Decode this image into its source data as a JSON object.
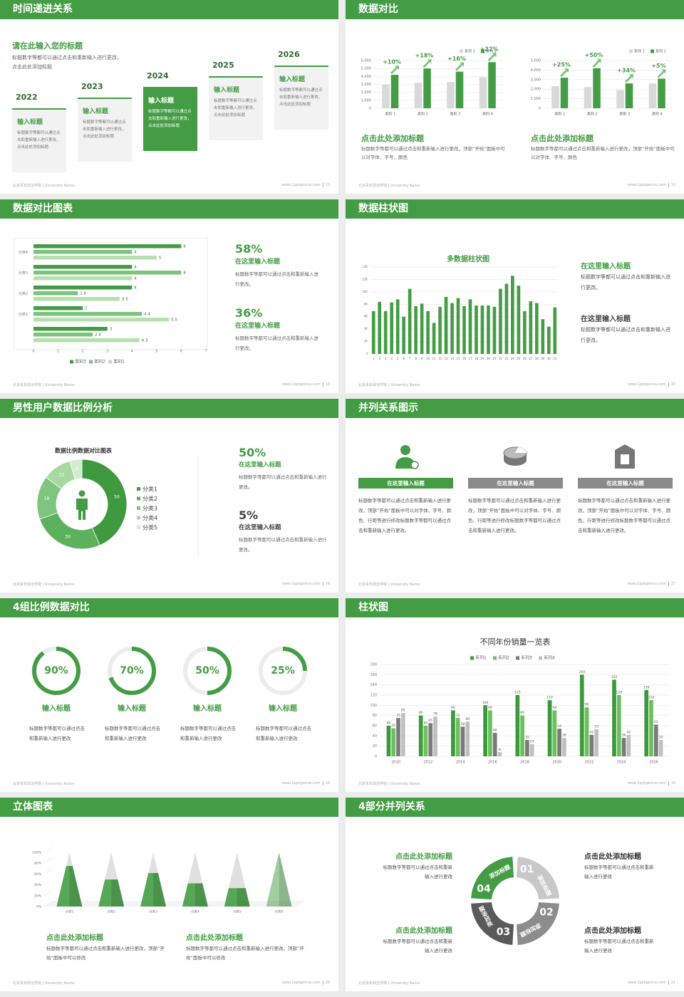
{
  "footer_left": "北京青年政治学院 | University Name",
  "footer_url": "www.1pptgenius.com",
  "slides": [
    {
      "title": "时间递进关系",
      "page": 12,
      "heading": "请在此输入您的标题",
      "text": "标题数字等都可以通过点击和重新输入进行更改，点击此处添加标题",
      "timeline": [
        {
          "year": "2022",
          "title": "输入标题",
          "text": "标题数字等都可以通过点击和重新输入进行更改，点击此处添加标题",
          "color": "#f2f2f2"
        },
        {
          "year": "2023",
          "title": "输入标题",
          "text": "标题数字等都可以通过点击和重新输入进行更改，点击此处添加标题",
          "color": "#f2f2f2"
        },
        {
          "year": "2024",
          "title": "输入标题",
          "text": "标题数字等都可以通过点击和重新输入进行更改，点击此处添加标题",
          "color": "#449d44"
        },
        {
          "year": "2025",
          "title": "输入标题",
          "text": "标题数字等都可以通过点击和重新输入进行更改，点击此处添加标题",
          "color": "#f2f2f2"
        },
        {
          "year": "2026",
          "title": "输入标题",
          "text": "标题数字等都可以通过点击和重新输入进行更改，点击此处添加标题",
          "color": "#f2f2f2"
        }
      ]
    },
    {
      "title": "数据对比",
      "page": 13,
      "charts": [
        {
          "type": "bar",
          "categories": [
            "类别 1",
            "类别 2",
            "类别 3",
            "类别 4"
          ],
          "series": [
            {
              "name": "系列 1",
              "color": "#d9d9d9",
              "values": [
                3000,
                3200,
                3300,
                3900
              ]
            },
            {
              "name": "系列 2",
              "color": "#449d44",
              "values": [
                4200,
                5000,
                4600,
                5800
              ]
            }
          ],
          "annotations": [
            "+10%",
            "+18%",
            "+16%",
            "+22%"
          ],
          "ylim": [
            0,
            6000
          ],
          "yticks": [
            0,
            {
              "value": 1000,
              "label": "1,000"
            },
            {
              "value": 2000,
              "label": "2,000"
            },
            {
              "value": 3000,
              "label": "3,000"
            },
            {
              "value": 4000,
              "label": "4,000"
            },
            {
              "value": 5000,
              "label": "5,000"
            },
            {
              "value": 6000,
              "label": "6,000"
            }
          ],
          "heading": "点击此处添加标题",
          "text": "标题数字等都可以通过点击和重新输入进行更改，顶部“开始”面板中可以对字体、字号、颜色"
        },
        {
          "type": "bar",
          "categories": [
            "类别 1",
            "类别 2",
            "类别 3",
            "类别 4"
          ],
          "series": [
            {
              "name": "系列 1",
              "color": "#d9d9d9",
              "values": [
                2300,
                2200,
                1900,
                2600
              ]
            },
            {
              "name": "系列 2",
              "color": "#449d44",
              "values": [
                3200,
                4200,
                2600,
                3100
              ]
            }
          ],
          "annotations": [
            "+25%",
            "+50%",
            "+34%",
            "+5%"
          ],
          "ylim": [
            0,
            5000
          ],
          "yticks": [
            0,
            {
              "value": 1000,
              "label": "1,000"
            },
            {
              "value": 2000,
              "label": "2,000"
            },
            {
              "value": 3000,
              "label": "3,000"
            },
            {
              "value": 4000,
              "label": "4,000"
            },
            {
              "value": 5000,
              "label": "5,000"
            }
          ],
          "heading": "点击此处添加标题",
          "text": "标题数字等都可以通过点击和重新输入进行更改，顶部“开始”面板中可以对字体、字号、颜色"
        }
      ]
    },
    {
      "title": "数据对比图表",
      "page": 14,
      "chart": {
        "type": "hbar",
        "categories": [
          null,
          "分类1",
          "分类2",
          "分类3",
          "分类4"
        ],
        "series": [
          {
            "name": "类别3",
            "color": "#449d44",
            "values": [
              3,
              2,
              4,
              4,
              6
            ]
          },
          {
            "name": "类别2",
            "color": "#7cc47c",
            "values": [
              2.4,
              4.4,
              1.8,
              6,
              4
            ]
          },
          {
            "name": "类别1",
            "color": "#b7e0b0",
            "values": [
              4.3,
              5.5,
              3.5,
              4,
              5
            ]
          }
        ],
        "xlim": [
          0,
          7
        ],
        "xticks": [
          0,
          1,
          2,
          3,
          4,
          5,
          6,
          7
        ]
      },
      "notes": [
        {
          "value": "58%",
          "title": "在这里输入标题",
          "text": "标题数字等都可以通过点击和重新输入进行更改。"
        },
        {
          "value": "36%",
          "title": "在这里输入标题",
          "text": "标题数字等都可以通过点击和重新输入进行更改。"
        }
      ]
    },
    {
      "title": "数据柱状图",
      "page": 15,
      "chart": {
        "type": "bar",
        "title": "多数据柱状图",
        "color": "#449d44",
        "categories": [
          "1",
          "2",
          "3",
          "4",
          "5",
          "6",
          "7",
          "8",
          "9",
          "10",
          "11",
          "12",
          "13",
          "14",
          "15",
          "16",
          "17",
          "18",
          "19",
          "20",
          "21",
          "22",
          "23",
          "24",
          "25",
          "26",
          "27",
          "28",
          "29",
          "30",
          "31"
        ],
        "values": [
          6900,
          8400,
          6900,
          8300,
          8800,
          6000,
          10500,
          7700,
          8100,
          6900,
          5000,
          7600,
          9200,
          8200,
          9000,
          7700,
          8800,
          7800,
          7800,
          7800,
          7600,
          10500,
          11300,
          12600,
          11000,
          6900,
          8500,
          8200,
          5600,
          4400,
          7500
        ],
        "ylim": [
          0,
          14000
        ],
        "yticks": [
          0,
          {
            "value": 2000,
            "label": "2K"
          },
          {
            "value": 4000,
            "label": "4K"
          },
          {
            "value": 6000,
            "label": "6K"
          },
          {
            "value": 8000,
            "label": "8K"
          },
          {
            "value": 10000,
            "label": "10K"
          },
          {
            "value": 12000,
            "label": "12K"
          },
          {
            "value": 14000,
            "label": "14K"
          }
        ]
      },
      "notes": [
        {
          "title": "在这里输入标题",
          "text": "标题数字等都可以通过点击和重新输入进行更改。"
        },
        {
          "title": "在这里输入标题",
          "text": "标题数字等都可以通过点击和重新输入进行更改。"
        }
      ]
    },
    {
      "title": "男性用户数据比例分析",
      "page": 16,
      "chart": {
        "type": "pie",
        "title": "数据比例数据对比图表",
        "categories": [
          "分类1",
          "分类2",
          "分类3",
          "分类4",
          "分类5"
        ],
        "values": [
          50,
          30,
          18,
          12,
          5
        ],
        "colors": [
          "#3f9a3f",
          "#5cb15c",
          "#7fc47f",
          "#a6d8a0",
          "#d3ecd0"
        ]
      },
      "notes": [
        {
          "value": "50%",
          "title": "在这里输入标题",
          "text": "标题数字等都可以通过点击和重新输入进行更改。"
        },
        {
          "value": "5%",
          "title": "在这里输入标题",
          "text": "标题数字等都可以通过点击和重新输入进行更改。"
        }
      ]
    },
    {
      "title": "并列关系图示",
      "page": 17,
      "items": [
        {
          "title": "在这里输入标题",
          "color": "#449d44",
          "text": "标题数字等都可以通过点击和重新输入进行更改，顶部“开始”面板中可以对字体、字号、颜色、行距等进行修改标题数字等都可以通过点击和重新输入进行更改。"
        },
        {
          "title": "在这里输入标题",
          "color": "#8a8a8a",
          "text": "标题数字等都可以通过点击和重新输入进行更改，顶部“开始”面板中可以对字体、字号、颜色、行距等进行修改标题数字等都可以通过点击和重新输入进行更改。"
        },
        {
          "title": "在这里输入标题",
          "color": "#8a8a8a",
          "text": "标题数字等都可以通过点击和重新输入进行更改，顶部“开始”面板中可以对字体、字号、颜色、行距等进行修改标题数字等都可以通过点击和重新输入进行更改。"
        }
      ]
    },
    {
      "title": "4组比例数据对比",
      "page": 18,
      "chart": {
        "type": "ring",
        "values": [
          90,
          70,
          50,
          25
        ],
        "value_labels": [
          "90%",
          "70%",
          "50%",
          "25%"
        ],
        "max": 100,
        "titles": [
          "输入标题",
          "输入标题",
          "输入标题",
          "输入标题"
        ],
        "texts": [
          "标题数字等都可以通过点击和重新输入进行更改",
          "标题数字等都可以通过点击和重新输入进行更改",
          "标题数字等都可以通过点击和重新输入进行更改",
          "标题数字等都可以通过点击和重新输入进行更改"
        ]
      }
    },
    {
      "title": "柱状图",
      "page": 19,
      "chart": {
        "type": "bar",
        "title": "不同年份销量一览表",
        "categories": [
          "2010",
          "2012",
          "2014",
          "2016",
          "2018",
          "2020",
          "2022",
          "2024",
          "2026"
        ],
        "series": [
          {
            "name": "系列1",
            "color": "#3b9a3b",
            "values": [
              60,
              80,
              90,
              100,
              120,
              110,
              160,
              150,
              130
            ]
          },
          {
            "name": "系列2",
            "color": "#6cc05c",
            "values": [
              55,
              60,
              75,
              90,
              80,
              90,
              96,
              120,
              110
            ]
          },
          {
            "name": "系列3",
            "color": "#7a7a7a",
            "values": [
              75,
              65,
              58,
              46,
              32,
              54,
              42,
              36,
              62
            ]
          },
          {
            "name": "系列4",
            "color": "#c0c0c0",
            "values": [
              85,
              78,
              68,
              8,
              24,
              36,
              53,
              42,
              32
            ]
          }
        ],
        "ylim": [
          0,
          180
        ],
        "yticks": [
          0,
          20,
          40,
          60,
          80,
          100,
          120,
          140,
          160,
          180
        ]
      }
    },
    {
      "title": "立体图表",
      "page": 20,
      "chart": {
        "type": "cone",
        "categories": [
          "分类1",
          "分类2",
          "分类3",
          "分类4",
          "分类5",
          "分类6"
        ],
        "values": [
          75,
          50,
          62,
          43,
          34,
          100
        ],
        "color": "#449d44",
        "ylim": [
          0,
          100
        ],
        "yticks": [
          {
            "value": 0,
            "label": "0%"
          },
          {
            "value": 20,
            "label": "20%"
          },
          {
            "value": 40,
            "label": "40%"
          },
          {
            "value": 60,
            "label": "60%"
          },
          {
            "value": 80,
            "label": "80%"
          },
          {
            "value": 100,
            "label": "100%"
          }
        ]
      },
      "notes": [
        {
          "title": "点击此处添加标题",
          "text": "标题数字等都可以通过点击和重新输入进行更改，顶部“开始”面板中可以修改"
        },
        {
          "title": "点击此处添加标题",
          "text": "标题数字等都可以通过点击和重新输入进行更改，顶部“开始”面板中可以修改"
        }
      ]
    },
    {
      "title": "4部分并列关系",
      "page": 21,
      "segments": [
        {
          "number": "01",
          "label": "添加标题",
          "color": "#c8c8c8"
        },
        {
          "number": "02",
          "label": "添加标题",
          "color": "#8c8c8c"
        },
        {
          "number": "03",
          "label": "添加标题",
          "color": "#5a5a5a"
        },
        {
          "number": "04",
          "label": "添加标题",
          "color": "#449d44"
        }
      ],
      "blocks": [
        {
          "title": "点击此处添加标题",
          "text": "标题数字等都可以通过点击和重新输入进行更改"
        },
        {
          "title": "点击此处添加标题",
          "text": "标题数字等都可以通过点击和重新输入进行更改"
        },
        {
          "title": "点击此处添加标题",
          "text": "标题数字等都可以通过点击和重新输入进行更改"
        },
        {
          "title": "点击此处添加标题",
          "text": "标题数字等都可以通过点击和重新输入进行更改"
        }
      ]
    }
  ]
}
